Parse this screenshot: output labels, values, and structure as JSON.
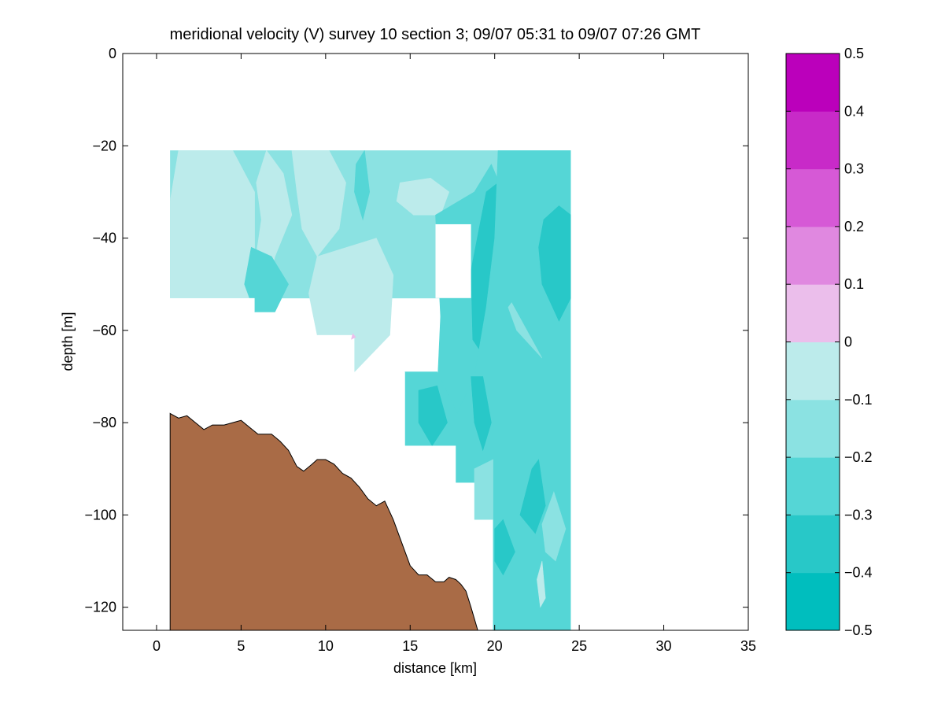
{
  "chart_data": {
    "type": "heatmap",
    "title": "meridional velocity (V) survey 10 section 3; 09/07 05:31 to 09/07 07:26 GMT",
    "xlabel": "distance [km]",
    "ylabel": "depth [m]",
    "xlim": [
      -2,
      35
    ],
    "ylim": [
      -125,
      0
    ],
    "xticks": [
      0,
      5,
      10,
      15,
      20,
      25,
      30,
      35
    ],
    "yticks": [
      0,
      -20,
      -40,
      -60,
      -80,
      -100,
      -120
    ],
    "grid": false,
    "colorbar": {
      "range": [
        -0.5,
        0.5
      ],
      "ticks": [
        "0.5",
        "0.4",
        "0.3",
        "0.2",
        "0.1",
        "0",
        "−0.1",
        "−0.2",
        "−0.3",
        "−0.4",
        "−0.5"
      ],
      "levels": [
        {
          "from": -0.5,
          "to": -0.4,
          "color": "#00bebe"
        },
        {
          "from": -0.4,
          "to": -0.3,
          "color": "#28c8c8"
        },
        {
          "from": -0.3,
          "to": -0.2,
          "color": "#55d6d6"
        },
        {
          "from": -0.2,
          "to": -0.1,
          "color": "#8be2e2"
        },
        {
          "from": -0.1,
          "to": 0.0,
          "color": "#bcebeb"
        },
        {
          "from": 0.0,
          "to": 0.1,
          "color": "#ebbeeb"
        },
        {
          "from": 0.1,
          "to": 0.2,
          "color": "#e088e0"
        },
        {
          "from": 0.2,
          "to": 0.3,
          "color": "#d659d6"
        },
        {
          "from": 0.3,
          "to": 0.4,
          "color": "#c82ac8"
        },
        {
          "from": 0.4,
          "to": 0.5,
          "color": "#bb00bb"
        }
      ]
    },
    "data_region": {
      "top_depth": -21,
      "right_distance": 24.5,
      "bottom_steps": [
        {
          "x0": 0.8,
          "x1": 5.8,
          "depth": -53
        },
        {
          "x0": 5.8,
          "x1": 11.7,
          "depth": -61
        },
        {
          "x0": 11.7,
          "x1": 14.7,
          "depth": -69
        },
        {
          "x0": 14.7,
          "x1": 17.7,
          "depth": -85
        },
        {
          "x0": 17.7,
          "x1": 18.8,
          "depth": -93
        },
        {
          "x0": 18.8,
          "x1": 19.9,
          "depth": -101
        },
        {
          "x0": 19.9,
          "x1": 24.5,
          "depth": -125
        }
      ],
      "gap": {
        "x0": 16.5,
        "x1": 18.6,
        "depth_top": -37,
        "depth_bottom": -53
      }
    },
    "velocity_patches": [
      {
        "level": -0.15,
        "poly": [
          [
            0.8,
            -21
          ],
          [
            24.5,
            -21
          ],
          [
            24.5,
            -53
          ],
          [
            0.8,
            -53
          ]
        ]
      },
      {
        "level": -0.05,
        "poly": [
          [
            1.3,
            -21
          ],
          [
            4.5,
            -21
          ],
          [
            5.8,
            -30
          ],
          [
            5.8,
            -53
          ],
          [
            0.8,
            -53
          ],
          [
            0.8,
            -32
          ]
        ]
      },
      {
        "level": -0.05,
        "poly": [
          [
            6.5,
            -21
          ],
          [
            7.5,
            -26
          ],
          [
            8.0,
            -35
          ],
          [
            7.0,
            -44
          ],
          [
            6.5,
            -53
          ],
          [
            5.9,
            -53
          ],
          [
            5.8,
            -46
          ],
          [
            6.2,
            -36
          ],
          [
            5.9,
            -28
          ]
        ]
      },
      {
        "level": -0.25,
        "poly": [
          [
            5.6,
            -42
          ],
          [
            6.8,
            -44
          ],
          [
            7.8,
            -50
          ],
          [
            7.0,
            -56
          ],
          [
            5.8,
            -56
          ],
          [
            5.2,
            -50
          ]
        ]
      },
      {
        "level": -0.05,
        "poly": [
          [
            8.0,
            -21
          ],
          [
            10.2,
            -21
          ],
          [
            11.2,
            -28
          ],
          [
            10.8,
            -38
          ],
          [
            9.5,
            -44
          ],
          [
            8.6,
            -38
          ],
          [
            8.3,
            -30
          ]
        ]
      },
      {
        "level": -0.05,
        "poly": [
          [
            9.5,
            -44
          ],
          [
            13.0,
            -40
          ],
          [
            14.0,
            -48
          ],
          [
            13.8,
            -61
          ],
          [
            11.7,
            -69
          ],
          [
            11.7,
            -61
          ],
          [
            9.5,
            -61
          ],
          [
            9.0,
            -52
          ]
        ]
      },
      {
        "level": -0.25,
        "poly": [
          [
            11.8,
            -24
          ],
          [
            12.3,
            -21
          ],
          [
            12.6,
            -30
          ],
          [
            12.2,
            -36
          ],
          [
            11.7,
            -30
          ]
        ]
      },
      {
        "level": -0.05,
        "poly": [
          [
            14.4,
            -28
          ],
          [
            16.2,
            -27
          ],
          [
            17.3,
            -30
          ],
          [
            16.8,
            -35
          ],
          [
            15.2,
            -35
          ],
          [
            14.2,
            -32
          ]
        ]
      },
      {
        "level": -0.25,
        "poly": [
          [
            16.5,
            -35
          ],
          [
            18.8,
            -30
          ],
          [
            19.8,
            -24
          ],
          [
            20.5,
            -30
          ],
          [
            20.0,
            -40
          ],
          [
            19.5,
            -55
          ],
          [
            18.8,
            -70
          ],
          [
            17.8,
            -78
          ],
          [
            16.6,
            -73
          ],
          [
            16.8,
            -57
          ]
        ]
      },
      {
        "level": -0.35,
        "poly": [
          [
            19.5,
            -30
          ],
          [
            20.2,
            -28
          ],
          [
            20.6,
            -44
          ],
          [
            20.6,
            -58
          ],
          [
            19.8,
            -68
          ],
          [
            18.7,
            -62
          ],
          [
            18.6,
            -47
          ]
        ]
      },
      {
        "level": -0.45,
        "poly": [
          [
            19.9,
            -48
          ],
          [
            20.1,
            -46
          ],
          [
            20.3,
            -53
          ],
          [
            20.0,
            -55
          ]
        ]
      },
      {
        "level": -0.25,
        "poly": [
          [
            20.2,
            -21
          ],
          [
            24.5,
            -21
          ],
          [
            24.5,
            -125
          ],
          [
            19.9,
            -125
          ],
          [
            19.9,
            -101
          ],
          [
            18.8,
            -101
          ],
          [
            18.8,
            -93
          ],
          [
            17.7,
            -93
          ],
          [
            17.7,
            -85
          ],
          [
            14.7,
            -85
          ],
          [
            14.7,
            -69
          ],
          [
            16.6,
            -69
          ],
          [
            17.8,
            -78
          ],
          [
            18.8,
            -70
          ],
          [
            19.5,
            -55
          ],
          [
            20.0,
            -40
          ]
        ]
      },
      {
        "level": -0.35,
        "poly": [
          [
            22.9,
            -36
          ],
          [
            23.8,
            -33
          ],
          [
            24.5,
            -35
          ],
          [
            24.5,
            -53
          ],
          [
            23.8,
            -58
          ],
          [
            22.8,
            -50
          ],
          [
            22.6,
            -42
          ]
        ]
      },
      {
        "level": -0.35,
        "poly": [
          [
            18.6,
            -70
          ],
          [
            19.3,
            -70
          ],
          [
            19.8,
            -80
          ],
          [
            19.3,
            -86
          ],
          [
            18.8,
            -80
          ]
        ]
      },
      {
        "level": -0.35,
        "poly": [
          [
            22.2,
            -90
          ],
          [
            22.6,
            -88
          ],
          [
            23.0,
            -98
          ],
          [
            22.4,
            -104
          ],
          [
            21.5,
            -100
          ]
        ]
      },
      {
        "level": -0.35,
        "poly": [
          [
            20.0,
            -103
          ],
          [
            20.5,
            -101
          ],
          [
            21.2,
            -108
          ],
          [
            20.5,
            -113
          ],
          [
            20.0,
            -110
          ]
        ]
      },
      {
        "level": -0.35,
        "poly": [
          [
            15.5,
            -73
          ],
          [
            16.6,
            -72
          ],
          [
            17.2,
            -80
          ],
          [
            16.3,
            -85
          ],
          [
            15.5,
            -80
          ]
        ]
      },
      {
        "level": -0.15,
        "poly": [
          [
            18.8,
            -90
          ],
          [
            19.9,
            -88
          ],
          [
            19.9,
            -101
          ],
          [
            18.8,
            -101
          ]
        ]
      },
      {
        "level": -0.15,
        "poly": [
          [
            21.0,
            -54
          ],
          [
            22.8,
            -66
          ],
          [
            21.3,
            -60
          ],
          [
            20.8,
            -55
          ]
        ]
      },
      {
        "level": -0.15,
        "poly": [
          [
            22.8,
            -102
          ],
          [
            23.5,
            -95
          ],
          [
            24.2,
            -103
          ],
          [
            23.6,
            -110
          ],
          [
            23.0,
            -108
          ]
        ]
      },
      {
        "level": -0.05,
        "poly": [
          [
            22.5,
            -114
          ],
          [
            22.8,
            -110
          ],
          [
            23.0,
            -118
          ],
          [
            22.7,
            -120
          ]
        ]
      }
    ],
    "bathymetry": {
      "fill": "#a96b46",
      "points": [
        [
          0.8,
          -78
        ],
        [
          1.3,
          -79
        ],
        [
          1.8,
          -78.5
        ],
        [
          2.3,
          -80
        ],
        [
          2.8,
          -81.5
        ],
        [
          3.3,
          -80.5
        ],
        [
          4.0,
          -80.5
        ],
        [
          4.5,
          -80
        ],
        [
          5.0,
          -79.5
        ],
        [
          5.5,
          -81
        ],
        [
          6.0,
          -82.5
        ],
        [
          6.8,
          -82.5
        ],
        [
          7.3,
          -84
        ],
        [
          7.8,
          -86
        ],
        [
          8.3,
          -89.5
        ],
        [
          8.7,
          -90.5
        ],
        [
          9.2,
          -89
        ],
        [
          9.5,
          -88
        ],
        [
          10.0,
          -88
        ],
        [
          10.5,
          -89
        ],
        [
          11.0,
          -91
        ],
        [
          11.5,
          -92
        ],
        [
          12.0,
          -94
        ],
        [
          12.5,
          -96.5
        ],
        [
          13.0,
          -98
        ],
        [
          13.5,
          -97
        ],
        [
          14.0,
          -101
        ],
        [
          14.5,
          -106
        ],
        [
          15.0,
          -111
        ],
        [
          15.5,
          -113
        ],
        [
          16.0,
          -113
        ],
        [
          16.5,
          -114.5
        ],
        [
          17.0,
          -114.5
        ],
        [
          17.3,
          -113.5
        ],
        [
          17.7,
          -114
        ],
        [
          18.0,
          -115
        ],
        [
          18.3,
          -116.5
        ],
        [
          18.6,
          -120
        ],
        [
          19.0,
          -125
        ],
        [
          0.8,
          -125
        ]
      ]
    }
  }
}
